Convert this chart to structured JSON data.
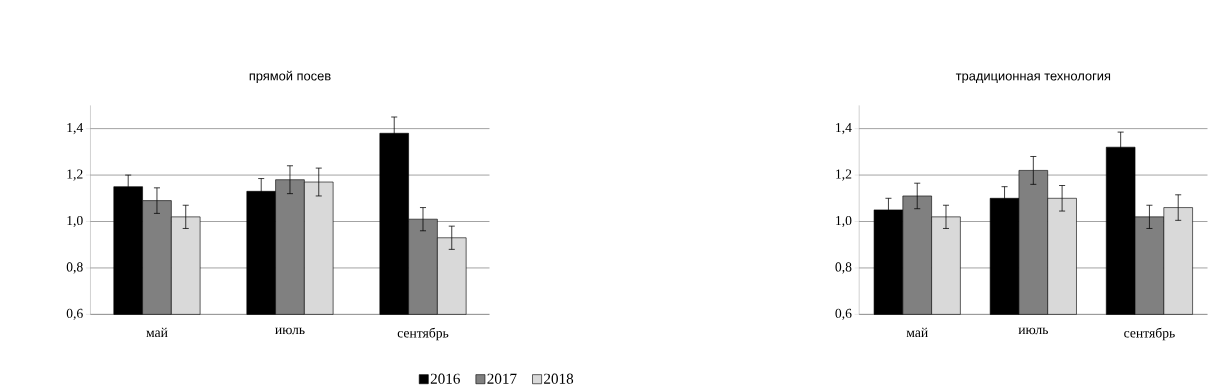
{
  "chart_data": [
    {
      "type": "bar",
      "title": "прямой посев",
      "categories": [
        "май",
        "июль",
        "сентябрь"
      ],
      "ylim": [
        0.6,
        1.5
      ],
      "yticks": [
        {
          "value": 0.6,
          "label": "0,6"
        },
        {
          "value": 0.8,
          "label": "0,8"
        },
        {
          "value": 1.0,
          "label": "1,0"
        },
        {
          "value": 1.2,
          "label": "1,2"
        },
        {
          "value": 1.4,
          "label": "1,4"
        }
      ],
      "grid": "y",
      "legend": "bottom",
      "series": [
        {
          "name": "2016",
          "color": "#000000",
          "values": [
            1.15,
            1.13,
            1.38
          ],
          "errors": [
            0.05,
            0.055,
            0.07
          ]
        },
        {
          "name": "2017",
          "color": "#808080",
          "values": [
            1.09,
            1.18,
            1.01
          ],
          "errors": [
            0.055,
            0.06,
            0.05
          ]
        },
        {
          "name": "2018",
          "color": "#d9d9d9",
          "values": [
            1.02,
            1.17,
            0.93
          ],
          "errors": [
            0.05,
            0.06,
            0.05
          ]
        }
      ]
    },
    {
      "type": "bar",
      "title": "традиционная технология",
      "categories": [
        "май",
        "июль",
        "сентябрь"
      ],
      "ylim": [
        0.6,
        1.5
      ],
      "yticks": [
        {
          "value": 0.6,
          "label": "0,6"
        },
        {
          "value": 0.8,
          "label": "0,8"
        },
        {
          "value": 1.0,
          "label": "1,0"
        },
        {
          "value": 1.2,
          "label": "1,2"
        },
        {
          "value": 1.4,
          "label": "1,4"
        }
      ],
      "grid": "y",
      "series": [
        {
          "color": "#000000",
          "values": [
            1.05,
            1.1,
            1.32
          ],
          "errors": [
            0.05,
            0.05,
            0.065
          ]
        },
        {
          "color": "#808080",
          "values": [
            1.11,
            1.22,
            1.02
          ],
          "errors": [
            0.055,
            0.06,
            0.05
          ]
        },
        {
          "color": "#d9d9d9",
          "values": [
            1.02,
            1.1,
            1.06
          ],
          "errors": [
            0.05,
            0.055,
            0.055
          ]
        }
      ]
    }
  ]
}
